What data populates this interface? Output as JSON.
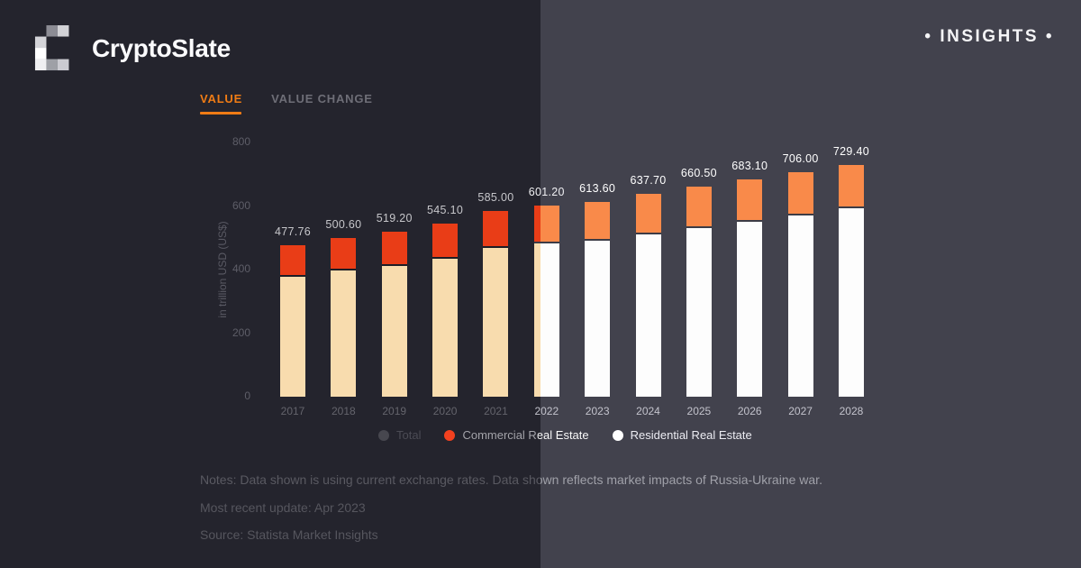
{
  "header": {
    "brand": "CryptoSlate",
    "insights_label": "• INSIGHTS •"
  },
  "tabs": [
    {
      "label": "VALUE",
      "active": true
    },
    {
      "label": "VALUE CHANGE",
      "active": false
    }
  ],
  "chart_data": {
    "type": "bar",
    "stacked": true,
    "grid": false,
    "legend_position": "bottom",
    "ylabel": "in trillion USD (US$)",
    "ylim": [
      0,
      800
    ],
    "yticks": [
      0,
      200,
      400,
      600,
      800
    ],
    "categories": [
      "2017",
      "2018",
      "2019",
      "2020",
      "2021",
      "2022",
      "2023",
      "2024",
      "2025",
      "2026",
      "2027",
      "2028"
    ],
    "totals": [
      477.76,
      500.6,
      519.2,
      545.1,
      585.0,
      601.2,
      613.6,
      637.7,
      660.5,
      683.1,
      706.0,
      729.4
    ],
    "total_labels": [
      "477.76",
      "500.60",
      "519.20",
      "545.10",
      "585.00",
      "601.20",
      "613.60",
      "637.70",
      "660.50",
      "683.10",
      "706.00",
      "729.40"
    ],
    "series": [
      {
        "name": "Commercial Real Estate",
        "estimated": true,
        "values": [
          96,
          99,
          102,
          106,
          110,
          113,
          116,
          120,
          123,
          127,
          130,
          131
        ]
      },
      {
        "name": "Residential Real Estate",
        "estimated": true,
        "values": [
          381.76,
          401.6,
          417.2,
          439.1,
          475.0,
          488.2,
          497.6,
          517.7,
          537.5,
          556.1,
          576.0,
          598.4
        ]
      }
    ],
    "legend": [
      {
        "label": "Total",
        "dot": "#47474f",
        "disabled": true
      },
      {
        "label": "Commercial Real Estate",
        "dot": "#f3411f",
        "disabled": false
      },
      {
        "label": "Residential Real Estate",
        "dot": "#ffffff",
        "disabled": false
      }
    ]
  },
  "footer": {
    "notes": "Notes: Data shown is using current exchange rates. Data shown reflects market impacts of Russia-Ukraine war.",
    "updated": "Most recent update: Apr 2023",
    "source": "Source: Statista Market Insights"
  },
  "colors": {
    "accent_orange": "#f07c15",
    "commercial_dark": "#e93d17",
    "commercial_bright": "#f98a4a",
    "residential_dark": "#f8dcae",
    "residential_bright": "#fdfdfd",
    "gap_dark": "#1d1d25",
    "gap_bright": "#3c3c46",
    "bg_left": "#24242d",
    "bg_right": "#42424d"
  }
}
